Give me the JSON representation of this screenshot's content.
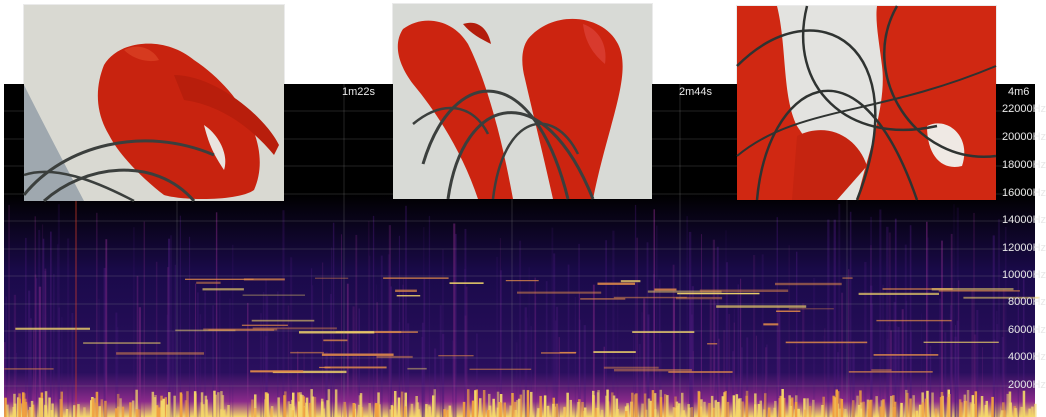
{
  "spectrogram": {
    "time_labels": [
      "1m22s",
      "2m44s",
      "4m6"
    ],
    "freq_labels": [
      "22000Hz",
      "20000Hz",
      "18000Hz",
      "16000Hz",
      "14000Hz",
      "12000Hz",
      "10000Hz",
      "8000Hz",
      "6000Hz",
      "4000Hz",
      "2000Hz"
    ],
    "colors": {
      "background": "#000000",
      "low": "#1a0a4a",
      "mid": "#8a2a8a",
      "high": "#f5d86a",
      "grid": "#9a9a9a"
    }
  },
  "photos": [
    {
      "icon": "red-paint-stroke-photo",
      "colors": {
        "paper": "#d9d9d2",
        "paint": "#c8230f",
        "wire": "#3b3f3d"
      }
    },
    {
      "icon": "red-paint-stroke-photo",
      "colors": {
        "paper": "#d8dad6",
        "paint": "#cc2410",
        "wire": "#3b3f3d"
      }
    },
    {
      "icon": "red-paint-stroke-photo",
      "colors": {
        "paper": "#e3e3e0",
        "paint": "#d02812",
        "wire": "#2f3331"
      }
    }
  ]
}
